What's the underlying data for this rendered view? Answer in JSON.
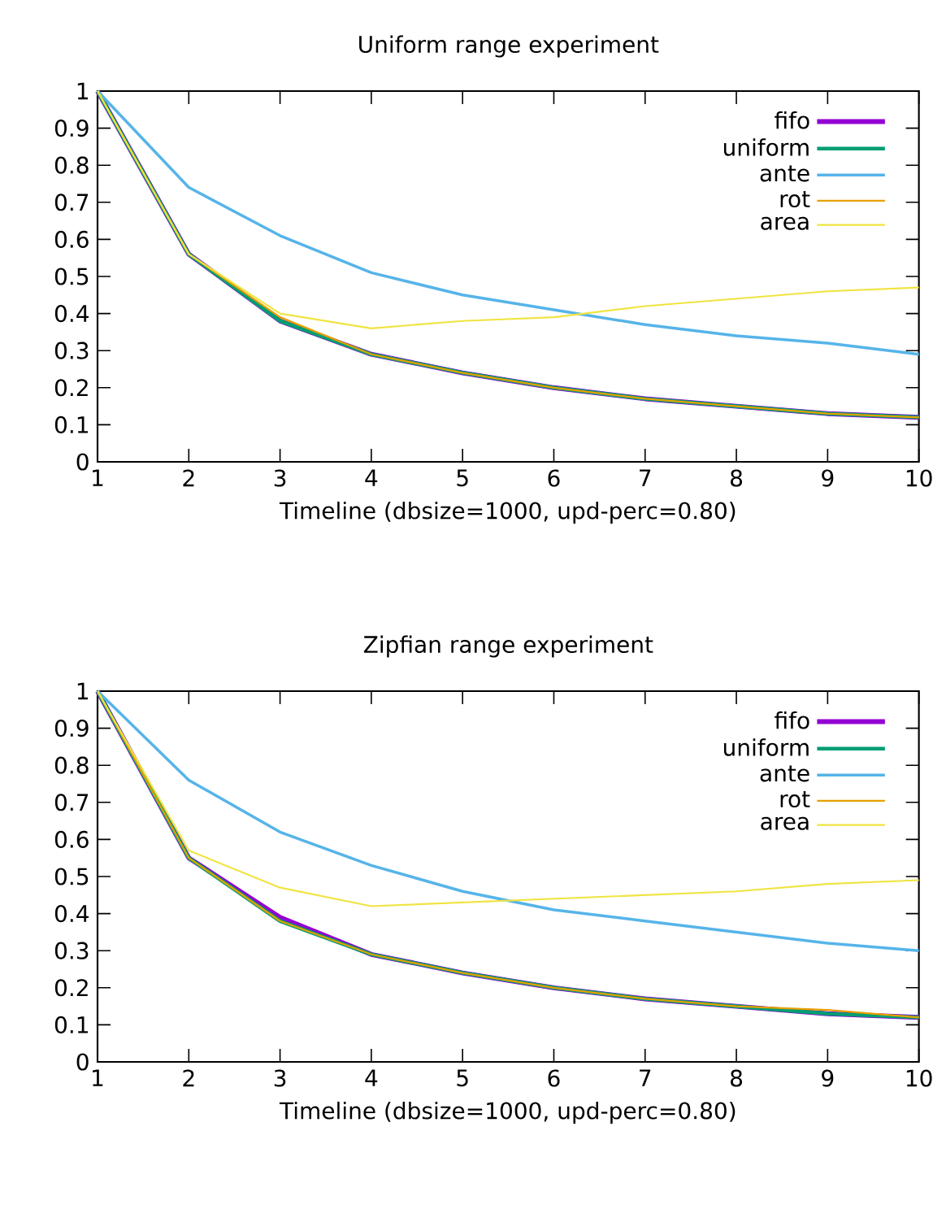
{
  "chart_data": [
    {
      "type": "line",
      "title": "Uniform range experiment",
      "xlabel": "Timeline (dbsize=1000, upd-perc=0.80)",
      "x": [
        1,
        2,
        3,
        4,
        5,
        6,
        7,
        8,
        9,
        10
      ],
      "xlim": [
        1,
        10
      ],
      "xticks": [
        1,
        2,
        3,
        4,
        5,
        6,
        7,
        8,
        9,
        10
      ],
      "ylim": [
        0,
        1
      ],
      "yticks": [
        0,
        0.1,
        0.2,
        0.3,
        0.4,
        0.5,
        0.6,
        0.7,
        0.8,
        0.9,
        1
      ],
      "legend": "top right",
      "grid": false,
      "marker": "none",
      "line_style": "solid",
      "series": [
        {
          "name": "fifo",
          "color": "#9400d3",
          "values": [
            1,
            0.56,
            0.38,
            0.29,
            0.24,
            0.2,
            0.17,
            0.15,
            0.13,
            0.12
          ]
        },
        {
          "name": "uniform",
          "color": "#009e73",
          "values": [
            1,
            0.56,
            0.38,
            0.29,
            0.24,
            0.2,
            0.17,
            0.15,
            0.13,
            0.12
          ]
        },
        {
          "name": "ante",
          "color": "#56b4e9",
          "values": [
            1,
            0.74,
            0.61,
            0.51,
            0.45,
            0.41,
            0.37,
            0.34,
            0.32,
            0.29
          ]
        },
        {
          "name": "rot",
          "color": "#e69f00",
          "values": [
            1,
            0.56,
            0.39,
            0.29,
            0.24,
            0.2,
            0.17,
            0.15,
            0.13,
            0.12
          ]
        },
        {
          "name": "area",
          "color": "#f0e442",
          "values": [
            1,
            0.56,
            0.4,
            0.36,
            0.38,
            0.39,
            0.42,
            0.44,
            0.46,
            0.47
          ]
        }
      ]
    },
    {
      "type": "line",
      "title": "Zipfian range experiment",
      "xlabel": "Timeline (dbsize=1000, upd-perc=0.80)",
      "x": [
        1,
        2,
        3,
        4,
        5,
        6,
        7,
        8,
        9,
        10
      ],
      "xlim": [
        1,
        10
      ],
      "xticks": [
        1,
        2,
        3,
        4,
        5,
        6,
        7,
        8,
        9,
        10
      ],
      "ylim": [
        0,
        1
      ],
      "yticks": [
        0,
        0.1,
        0.2,
        0.3,
        0.4,
        0.5,
        0.6,
        0.7,
        0.8,
        0.9,
        1
      ],
      "legend": "top right",
      "grid": false,
      "marker": "none",
      "line_style": "solid",
      "series": [
        {
          "name": "fifo",
          "color": "#9400d3",
          "values": [
            1,
            0.55,
            0.39,
            0.29,
            0.24,
            0.2,
            0.17,
            0.15,
            0.13,
            0.12
          ]
        },
        {
          "name": "uniform",
          "color": "#009e73",
          "values": [
            1,
            0.55,
            0.38,
            0.29,
            0.24,
            0.2,
            0.17,
            0.15,
            0.13,
            0.12
          ]
        },
        {
          "name": "ante",
          "color": "#56b4e9",
          "values": [
            1,
            0.76,
            0.62,
            0.53,
            0.46,
            0.41,
            0.38,
            0.35,
            0.32,
            0.3
          ]
        },
        {
          "name": "rot",
          "color": "#e69f00",
          "values": [
            1,
            0.55,
            0.38,
            0.29,
            0.24,
            0.2,
            0.17,
            0.15,
            0.14,
            0.12
          ]
        },
        {
          "name": "area",
          "color": "#f0e442",
          "values": [
            1,
            0.57,
            0.47,
            0.42,
            0.43,
            0.44,
            0.45,
            0.46,
            0.48,
            0.49
          ]
        }
      ]
    }
  ]
}
